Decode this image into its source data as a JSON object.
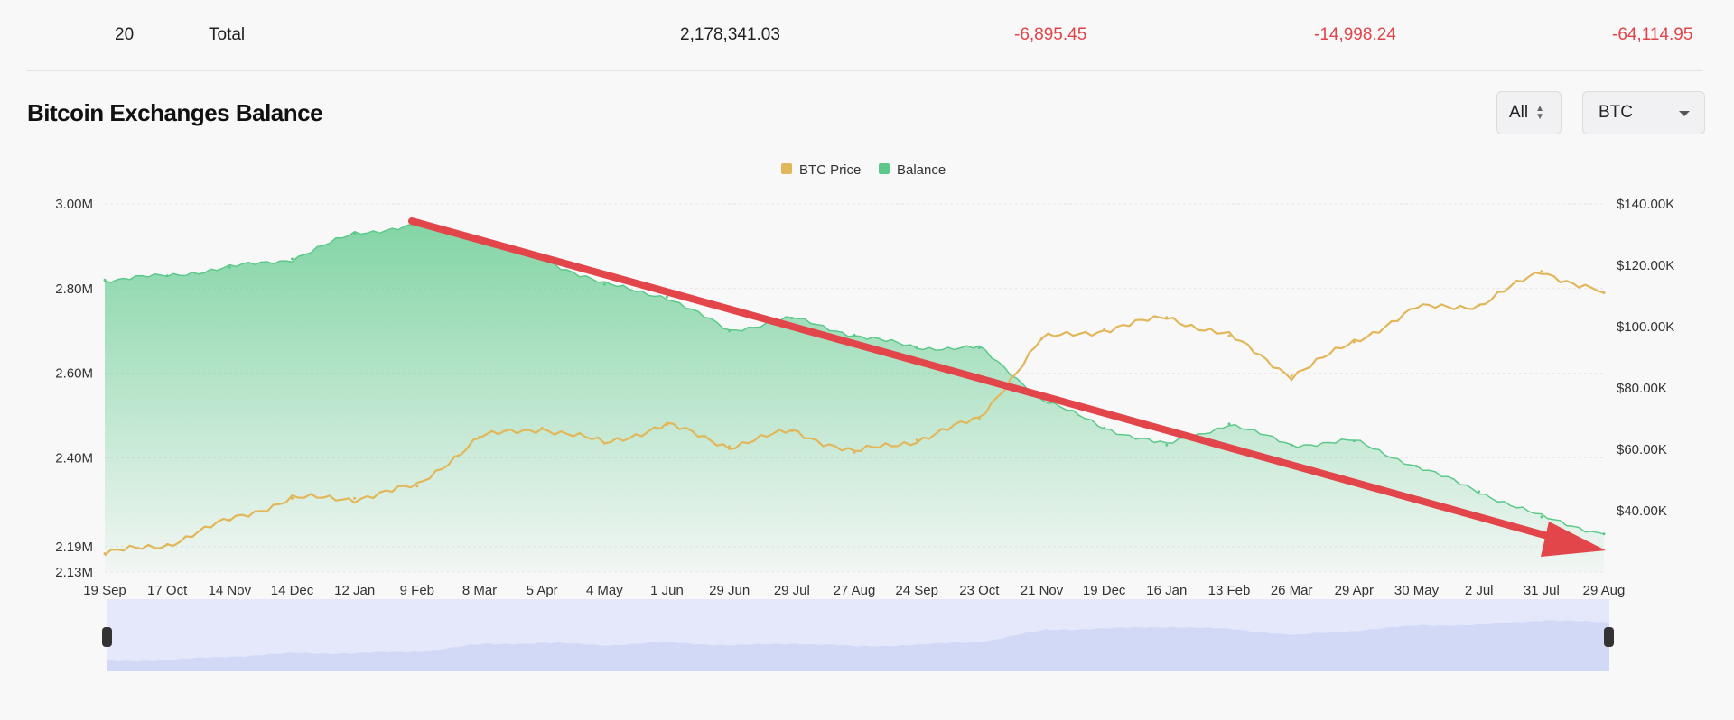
{
  "summary_row": {
    "rank": "20",
    "name": "Total",
    "balance": "2,178,341.03",
    "change_1": "-6,895.45",
    "change_2": "-14,998.24",
    "change_3": "-64,114.95"
  },
  "title": "Bitcoin Exchanges Balance",
  "controls": {
    "range_label": "All",
    "asset_label": "BTC"
  },
  "colors": {
    "balance": "#5cc98a",
    "price": "#e2b75a",
    "arrow": "#e2454a",
    "navigator": "#d9def7"
  },
  "chart_data": {
    "type": "area",
    "legend": [
      "BTC Price",
      "Balance"
    ],
    "legend_position": "top-center",
    "left_axis_ticks": [
      "3.00M",
      "2.80M",
      "2.60M",
      "2.40M",
      "2.19M",
      "2.13M"
    ],
    "right_axis_ticks": [
      "$140.00K",
      "$120.00K",
      "$100.00K",
      "$80.00K",
      "$60.00K",
      "$40.00K"
    ],
    "x_ticks": [
      "19 Sep",
      "17 Oct",
      "14 Nov",
      "14 Dec",
      "12 Jan",
      "9 Feb",
      "8 Mar",
      "5 Apr",
      "4 May",
      "1 Jun",
      "29 Jun",
      "29 Jul",
      "27 Aug",
      "24 Sep",
      "23 Oct",
      "21 Nov",
      "19 Dec",
      "16 Jan",
      "13 Feb",
      "26 Mar",
      "29 Apr",
      "30 May",
      "2 Jul",
      "31 Jul",
      "29 Aug"
    ],
    "left_range": [
      2130000,
      3000000
    ],
    "right_range": [
      20000,
      140000
    ],
    "grid": true,
    "series": [
      {
        "name": "Balance",
        "axis": "left",
        "values": [
          2820000,
          2830000,
          2850000,
          2870000,
          2930000,
          2950000,
          2920000,
          2870000,
          2810000,
          2780000,
          2700000,
          2730000,
          2690000,
          2660000,
          2660000,
          2540000,
          2470000,
          2430000,
          2480000,
          2430000,
          2440000,
          2380000,
          2320000,
          2260000,
          2220000
        ]
      },
      {
        "name": "BTC Price",
        "axis": "right",
        "values": [
          26000,
          29000,
          37000,
          44000,
          44000,
          48000,
          64000,
          67000,
          62000,
          68000,
          61000,
          66000,
          59000,
          63000,
          70000,
          96000,
          99000,
          103000,
          97000,
          84000,
          95000,
          106000,
          107000,
          118000,
          111000
        ]
      }
    ]
  }
}
